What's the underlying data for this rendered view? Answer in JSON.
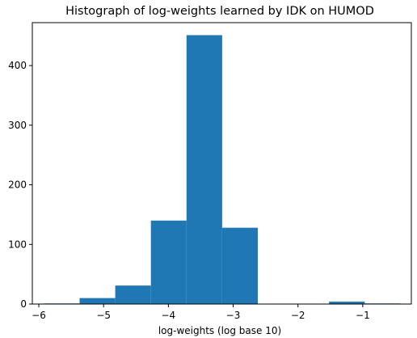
{
  "chart_data": {
    "type": "bar",
    "title": "Histograph of log-weights learned by IDK on HUMOD",
    "xlabel": "log-weights (log base 10)",
    "ylabel": "",
    "bar_color": "#1f77b4",
    "xlim": [
      -6.1,
      -0.25
    ],
    "ylim": [
      0,
      472
    ],
    "xticks": [
      -6,
      -5,
      -4,
      -3,
      -2,
      -1
    ],
    "xtick_labels": [
      "−6",
      "−5",
      "−4",
      "−3",
      "−2",
      "−1"
    ],
    "yticks": [
      0,
      100,
      200,
      300,
      400
    ],
    "ytick_labels": [
      "0",
      "100",
      "200",
      "300",
      "400"
    ],
    "bins": [
      {
        "x0": -5.92,
        "x1": -5.37,
        "count": 1
      },
      {
        "x0": -5.37,
        "x1": -4.82,
        "count": 10
      },
      {
        "x0": -4.82,
        "x1": -4.27,
        "count": 31
      },
      {
        "x0": -4.27,
        "x1": -3.72,
        "count": 140
      },
      {
        "x0": -3.72,
        "x1": -3.17,
        "count": 451
      },
      {
        "x0": -3.17,
        "x1": -2.62,
        "count": 128
      },
      {
        "x0": -2.62,
        "x1": -2.07,
        "count": 0
      },
      {
        "x0": -2.07,
        "x1": -1.52,
        "count": 0
      },
      {
        "x0": -1.52,
        "x1": -0.97,
        "count": 4
      },
      {
        "x0": -0.97,
        "x1": -0.42,
        "count": 1
      }
    ],
    "grid": false,
    "legend": "none"
  }
}
